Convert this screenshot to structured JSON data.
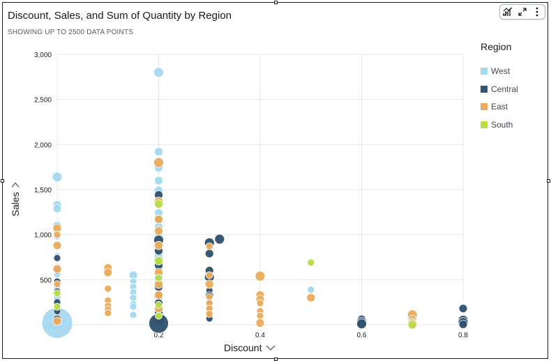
{
  "visual": {
    "title": "Discount, Sales, and Sum of Quantity by Region",
    "subtitle": "SHOWING UP TO 2500 DATA POINTS"
  },
  "toolbar": {
    "items": [
      {
        "icon": "chart-type-icon"
      },
      {
        "icon": "expand-icon"
      },
      {
        "icon": "more-options-icon"
      }
    ]
  },
  "legend": {
    "title": "Region",
    "items": [
      {
        "label": "West",
        "color": "#a6d9ef"
      },
      {
        "label": "Central",
        "color": "#33546e"
      },
      {
        "label": "East",
        "color": "#ebab5e"
      },
      {
        "label": "South",
        "color": "#b8dd45"
      }
    ]
  },
  "chart_data": {
    "type": "scatter",
    "title": "Discount, Sales, and Sum of Quantity by Region",
    "subtitle": "SHOWING UP TO 2500 DATA POINTS",
    "xlabel": "Discount",
    "ylabel": "Sales",
    "size_encoding": "Sum of Quantity",
    "xlim": [
      0,
      0.8
    ],
    "ylim": [
      0,
      3000
    ],
    "x_ticks": [
      0,
      0.2,
      0.4,
      0.6,
      0.8
    ],
    "x_tick_labels": [
      "0",
      "0.2",
      "0.4",
      "0.6",
      "0.8"
    ],
    "y_ticks": [
      0,
      500,
      1000,
      1500,
      2000,
      2500,
      3000
    ],
    "y_tick_labels": [
      "0",
      "500",
      "1,000",
      "1,500",
      "2,000",
      "2,500",
      "3,000"
    ],
    "grid": true,
    "legend_position": "right",
    "series": [
      {
        "name": "West",
        "color": "#a6d9ef",
        "points": [
          [
            0,
            1640,
            7
          ],
          [
            0,
            1330,
            6
          ],
          [
            0,
            1290,
            6
          ],
          [
            0,
            1100,
            6
          ],
          [
            0,
            980,
            5
          ],
          [
            0,
            760,
            5
          ],
          [
            0,
            560,
            5
          ],
          [
            0,
            420,
            5
          ],
          [
            0,
            300,
            5
          ],
          [
            0,
            180,
            5
          ],
          [
            0,
            100,
            6
          ],
          [
            0,
            20,
            22
          ],
          [
            0.15,
            550,
            6
          ],
          [
            0.15,
            480,
            5
          ],
          [
            0.15,
            420,
            5
          ],
          [
            0.15,
            360,
            5
          ],
          [
            0.15,
            300,
            5
          ],
          [
            0.15,
            230,
            5
          ],
          [
            0.15,
            200,
            5
          ],
          [
            0.15,
            110,
            5
          ],
          [
            0.2,
            2800,
            7
          ],
          [
            0.2,
            1920,
            6
          ],
          [
            0.2,
            1740,
            6
          ],
          [
            0.2,
            1600,
            6
          ],
          [
            0.2,
            1490,
            6
          ],
          [
            0.2,
            1380,
            6
          ],
          [
            0.2,
            1240,
            6
          ],
          [
            0.2,
            1090,
            6
          ],
          [
            0.2,
            980,
            6
          ],
          [
            0.2,
            900,
            6
          ],
          [
            0.2,
            850,
            6
          ],
          [
            0.2,
            800,
            6
          ],
          [
            0.2,
            760,
            6
          ],
          [
            0.2,
            620,
            6
          ],
          [
            0.2,
            560,
            6
          ],
          [
            0.2,
            480,
            6
          ],
          [
            0.2,
            400,
            6
          ],
          [
            0.2,
            300,
            6
          ],
          [
            0.2,
            240,
            6
          ],
          [
            0.2,
            160,
            6
          ],
          [
            0.2,
            90,
            6
          ],
          [
            0.2,
            40,
            9
          ],
          [
            0.5,
            390,
            5
          ]
        ]
      },
      {
        "name": "Central",
        "color": "#33546e",
        "points": [
          [
            0,
            740,
            5
          ],
          [
            0,
            600,
            5
          ],
          [
            0,
            480,
            5
          ],
          [
            0,
            370,
            5
          ],
          [
            0,
            250,
            5
          ],
          [
            0,
            150,
            5
          ],
          [
            0,
            60,
            6
          ],
          [
            0.2,
            1440,
            6
          ],
          [
            0.2,
            1170,
            6
          ],
          [
            0.2,
            940,
            7
          ],
          [
            0.2,
            820,
            6
          ],
          [
            0.2,
            660,
            6
          ],
          [
            0.2,
            520,
            6
          ],
          [
            0.2,
            420,
            6
          ],
          [
            0.2,
            330,
            6
          ],
          [
            0.2,
            240,
            6
          ],
          [
            0.2,
            130,
            6
          ],
          [
            0.2,
            60,
            9
          ],
          [
            0.2,
            15,
            14
          ],
          [
            0.3,
            910,
            7
          ],
          [
            0.32,
            950,
            7
          ],
          [
            0.3,
            790,
            6
          ],
          [
            0.3,
            600,
            6
          ],
          [
            0.3,
            530,
            7
          ],
          [
            0.3,
            380,
            5
          ],
          [
            0.3,
            320,
            6
          ],
          [
            0.3,
            250,
            5
          ],
          [
            0.3,
            190,
            5
          ],
          [
            0.3,
            130,
            5
          ],
          [
            0.3,
            70,
            5
          ],
          [
            0.6,
            60,
            6
          ],
          [
            0.6,
            30,
            7
          ],
          [
            0.6,
            10,
            7
          ],
          [
            0.8,
            180,
            6
          ],
          [
            0.8,
            50,
            7
          ],
          [
            0.8,
            25,
            7
          ],
          [
            0.8,
            5,
            6
          ]
        ]
      },
      {
        "name": "East",
        "color": "#ebab5e",
        "points": [
          [
            0,
            1070,
            6
          ],
          [
            0,
            1000,
            5
          ],
          [
            0,
            880,
            6
          ],
          [
            0,
            620,
            6
          ],
          [
            0,
            450,
            5
          ],
          [
            0,
            40,
            6
          ],
          [
            0.1,
            630,
            6
          ],
          [
            0.1,
            580,
            6
          ],
          [
            0.1,
            400,
            5
          ],
          [
            0.1,
            270,
            5
          ],
          [
            0.1,
            210,
            5
          ],
          [
            0.1,
            170,
            5
          ],
          [
            0.1,
            130,
            5
          ],
          [
            0.2,
            1800,
            7
          ],
          [
            0.2,
            1370,
            6
          ],
          [
            0.2,
            1170,
            6
          ],
          [
            0.2,
            1040,
            6
          ],
          [
            0.2,
            880,
            6
          ],
          [
            0.2,
            580,
            6
          ],
          [
            0.2,
            450,
            6
          ],
          [
            0.2,
            330,
            6
          ],
          [
            0.2,
            180,
            6
          ],
          [
            0.3,
            870,
            5
          ],
          [
            0.3,
            550,
            5
          ],
          [
            0.3,
            450,
            6
          ],
          [
            0.3,
            310,
            5
          ],
          [
            0.3,
            240,
            5
          ],
          [
            0.3,
            180,
            5
          ],
          [
            0.3,
            120,
            5
          ],
          [
            0.4,
            540,
            7
          ],
          [
            0.4,
            330,
            6
          ],
          [
            0.4,
            280,
            6
          ],
          [
            0.4,
            240,
            5
          ],
          [
            0.4,
            150,
            5
          ],
          [
            0.4,
            100,
            5
          ],
          [
            0.4,
            20,
            6
          ],
          [
            0.5,
            300,
            6
          ],
          [
            0.7,
            110,
            7
          ],
          [
            0.7,
            60,
            6
          ],
          [
            0.7,
            30,
            6
          ],
          [
            0.7,
            5,
            7
          ]
        ]
      },
      {
        "name": "South",
        "color": "#b8dd45",
        "points": [
          [
            0,
            350,
            5
          ],
          [
            0,
            200,
            5
          ],
          [
            0.2,
            1340,
            6
          ],
          [
            0.2,
            710,
            6
          ],
          [
            0.2,
            520,
            5
          ],
          [
            0.2,
            220,
            5
          ],
          [
            0.2,
            100,
            5
          ],
          [
            0.5,
            690,
            5
          ],
          [
            0.7,
            0,
            6
          ]
        ]
      }
    ]
  }
}
